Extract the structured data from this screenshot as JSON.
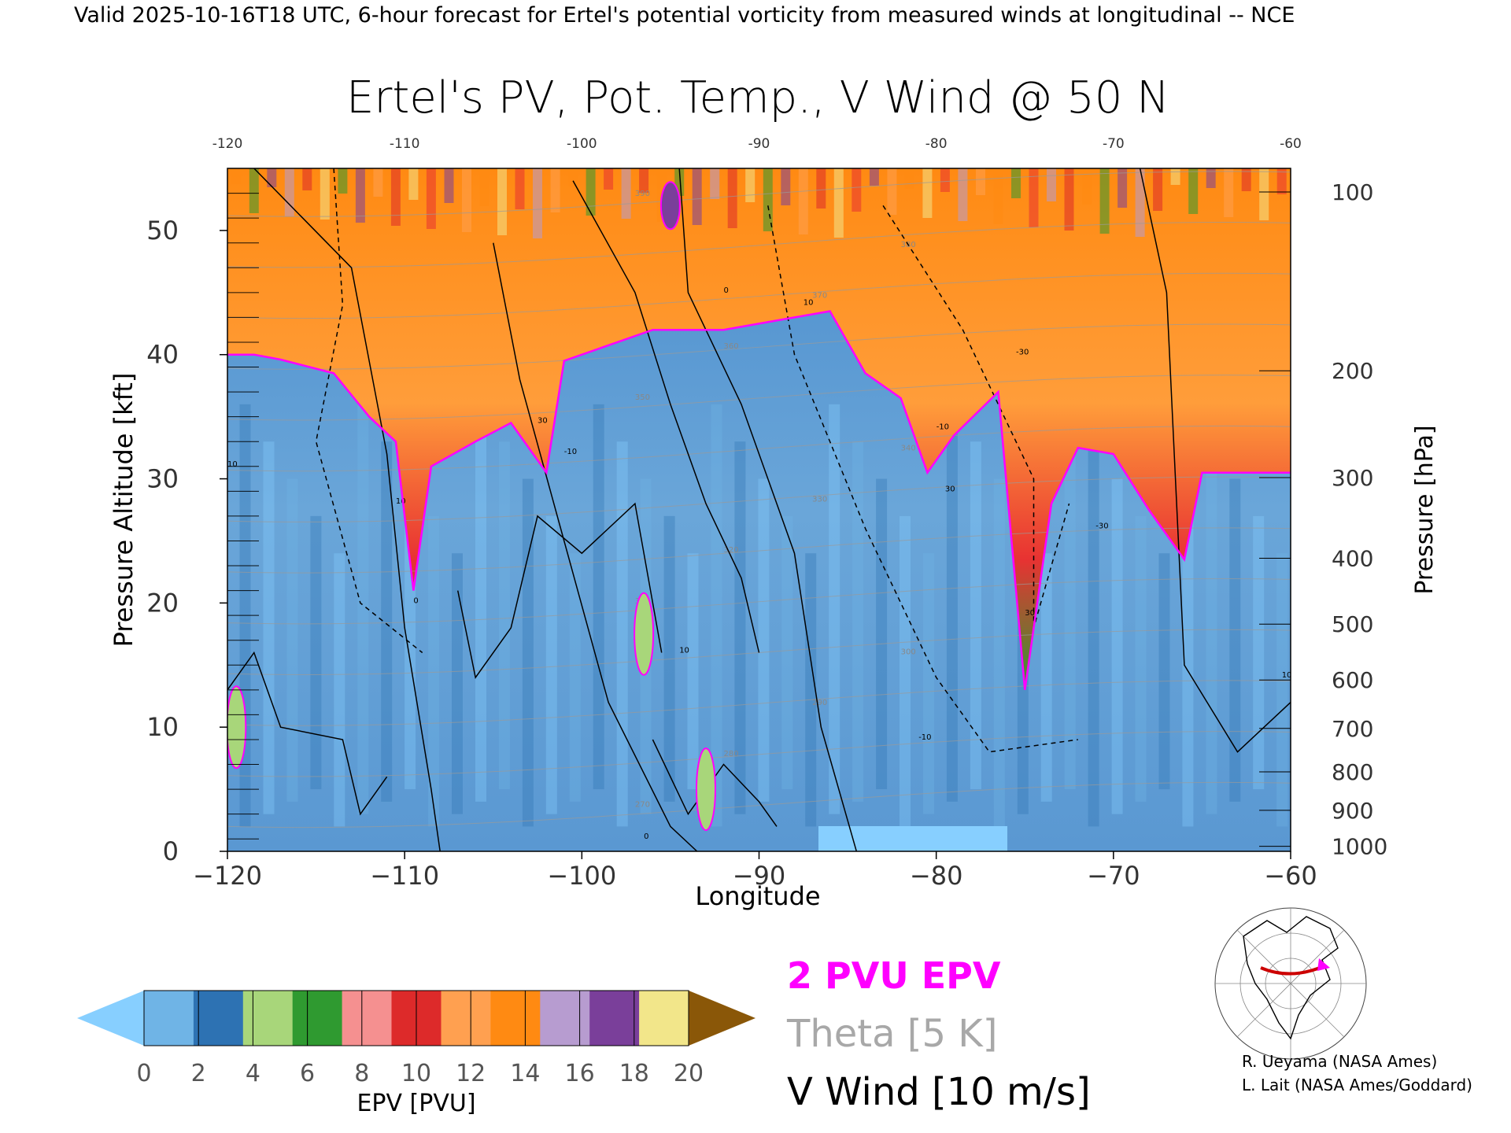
{
  "header": {
    "valid_line": "Valid 2025-10-16T18 UTC, 6-hour forecast for Ertel's potential vorticity from measured winds at longitudinal -- NCE"
  },
  "chart_data": {
    "type": "heatmap",
    "title": "Ertel's PV, Pot. Temp., V Wind @ 50 N",
    "xlabel": "Longitude",
    "ylabel_left": "Pressure Altitude [kft]",
    "ylabel_right": "Pressure [hPa]",
    "xlim": [
      -120,
      -60
    ],
    "ylim_kft": [
      0,
      55
    ],
    "x_ticks": [
      -120,
      -110,
      -100,
      -90,
      -80,
      -70,
      -60
    ],
    "x_tick_labels": [
      "−120",
      "−110",
      "−100",
      "−90",
      "−80",
      "−70",
      "−60"
    ],
    "top_tick_labels": [
      "-120",
      "-110",
      "-100",
      "-90",
      "-80",
      "-70",
      "-60"
    ],
    "y_ticks_kft": [
      0,
      10,
      20,
      30,
      40,
      50
    ],
    "y_tick_labels": [
      "0",
      "10",
      "20",
      "30",
      "40",
      "50"
    ],
    "pressure_ticks": [
      {
        "label": "100",
        "kft": 53.1
      },
      {
        "label": "200",
        "kft": 38.7
      },
      {
        "label": "300",
        "kft": 30.1
      },
      {
        "label": "400",
        "kft": 23.6
      },
      {
        "label": "500",
        "kft": 18.3
      },
      {
        "label": "600",
        "kft": 13.8
      },
      {
        "label": "700",
        "kft": 9.9
      },
      {
        "label": "800",
        "kft": 6.4
      },
      {
        "label": "900",
        "kft": 3.3
      },
      {
        "label": "1000",
        "kft": 0.4
      }
    ],
    "tropopause_2pvu": [
      {
        "lon": -120,
        "kft": 40
      },
      {
        "lon": -118.5,
        "kft": 40
      },
      {
        "lon": -117,
        "kft": 39.6
      },
      {
        "lon": -114,
        "kft": 38.5
      },
      {
        "lon": -112,
        "kft": 35
      },
      {
        "lon": -110.5,
        "kft": 33
      },
      {
        "lon": -109.5,
        "kft": 21
      },
      {
        "lon": -108.5,
        "kft": 31
      },
      {
        "lon": -106,
        "kft": 33
      },
      {
        "lon": -104,
        "kft": 34.5
      },
      {
        "lon": -102,
        "kft": 30.5
      },
      {
        "lon": -101,
        "kft": 39.5
      },
      {
        "lon": -98,
        "kft": 41
      },
      {
        "lon": -96,
        "kft": 42
      },
      {
        "lon": -92,
        "kft": 42
      },
      {
        "lon": -88,
        "kft": 43
      },
      {
        "lon": -86,
        "kft": 43.5
      },
      {
        "lon": -84,
        "kft": 38.5
      },
      {
        "lon": -82,
        "kft": 36.5
      },
      {
        "lon": -80.5,
        "kft": 30.5
      },
      {
        "lon": -79,
        "kft": 33.5
      },
      {
        "lon": -76.5,
        "kft": 37
      },
      {
        "lon": -75,
        "kft": 13
      },
      {
        "lon": -73.5,
        "kft": 28
      },
      {
        "lon": -72,
        "kft": 32.5
      },
      {
        "lon": -70,
        "kft": 32
      },
      {
        "lon": -68,
        "kft": 27.5
      },
      {
        "lon": -66,
        "kft": 23.5
      },
      {
        "lon": -65,
        "kft": 30.5
      },
      {
        "lon": -60,
        "kft": 30.5
      }
    ],
    "pv_islands": [
      {
        "lon": -96.5,
        "kft": 17.5,
        "value": 4
      },
      {
        "lon": -93,
        "kft": 5,
        "value": 4
      },
      {
        "lon": -119.5,
        "kft": 10,
        "value": 4
      },
      {
        "lon": -95,
        "kft": 52,
        "value": 15
      }
    ],
    "theta_contour_labels": [
      "270",
      "280",
      "290",
      "300",
      "310",
      "320",
      "330",
      "340",
      "350",
      "360",
      "370",
      "380",
      "390"
    ],
    "wind_contour_labels": [
      "0",
      "10",
      "10",
      "10",
      "20",
      "30",
      "30",
      "30",
      "-10",
      "-10",
      "-30",
      "-30",
      "-10",
      "0",
      "10",
      "10",
      "0",
      "0"
    ],
    "colorbar": {
      "label": "EPV [PVU]",
      "ticks": [
        0,
        2,
        4,
        6,
        8,
        10,
        12,
        14,
        16,
        18,
        20
      ],
      "tick_labels": [
        "0",
        "2",
        "4",
        "6",
        "8",
        "10",
        "12",
        "14",
        "16",
        "18",
        "20"
      ],
      "colors": [
        "#6fb4e6",
        "#2d72b3",
        "#a8d67a",
        "#2f9a30",
        "#f59090",
        "#dd2a2a",
        "#ffa050",
        "#ff8a12",
        "#b79cd0",
        "#7a3f9a",
        "#f2e68a"
      ],
      "under_color": "#87cfff",
      "over_color": "#8a5708"
    },
    "legend": [
      {
        "text": "2 PVU EPV",
        "color": "#ff00ff"
      },
      {
        "text": "Theta [5 K]",
        "color": "#a8a8a8"
      },
      {
        "text": "V Wind [10 m/s]",
        "color": "#000000"
      }
    ]
  },
  "credits": {
    "line1": "R. Ueyama (NASA Ames)",
    "line2": "L. Lait (NASA Ames/Goddard)"
  }
}
